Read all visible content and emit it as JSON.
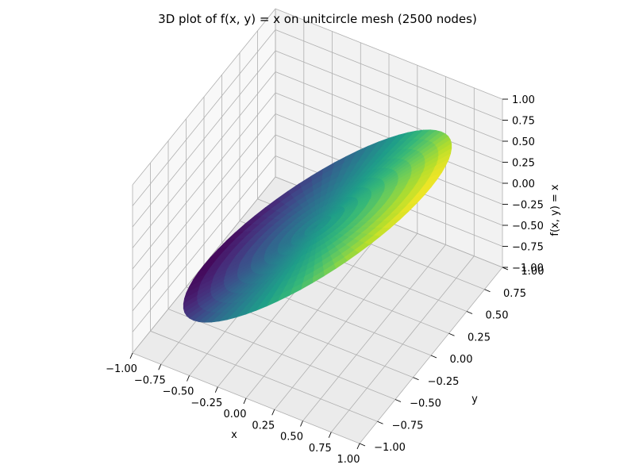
{
  "chart_data": {
    "type": "surface",
    "title": "3D plot of f(x, y) = x on unitcircle mesh (2500 nodes)",
    "function": "f(x, y) = x",
    "domain": "unit circle",
    "nodes": 2500,
    "colormap": "viridis",
    "xlabel": "x",
    "ylabel": "y",
    "zlabel": "f(x, y) = x",
    "xlim": [
      -1.0,
      1.0
    ],
    "ylim": [
      -1.0,
      1.0
    ],
    "zlim": [
      -1.0,
      1.0
    ],
    "xticks": [
      "−1.00",
      "−0.75",
      "−0.50",
      "−0.25",
      "0.00",
      "0.25",
      "0.50",
      "0.75",
      "1.00"
    ],
    "yticks": [
      "−1.00",
      "−0.75",
      "−0.50",
      "−0.25",
      "0.00",
      "0.25",
      "0.50",
      "0.75",
      "1.00"
    ],
    "zticks": [
      "−1.00",
      "−0.75",
      "−0.50",
      "−0.25",
      "0.00",
      "0.25",
      "0.50",
      "0.75",
      "1.00"
    ],
    "pane_colors": [
      "#f2f2f2",
      "#f8f8f8",
      "#ebebeb"
    ],
    "grid": true
  }
}
